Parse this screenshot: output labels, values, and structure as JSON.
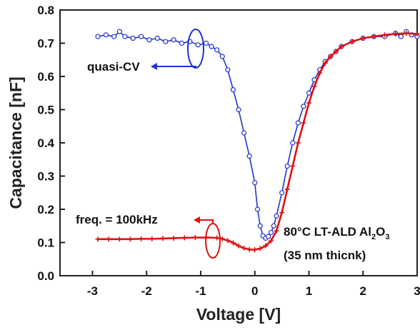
{
  "chart_data": {
    "type": "line",
    "title": "",
    "xlabel": "Voltage [V]",
    "ylabel": "Capacitance [nF]",
    "xlim": [
      -3.6,
      3.0
    ],
    "ylim": [
      0.0,
      0.8
    ],
    "xticks": [
      -3,
      -2,
      -1,
      0,
      1,
      2,
      3
    ],
    "xtick_labels": [
      "-3",
      "-2",
      "-1",
      "0",
      "1",
      "2",
      "3"
    ],
    "yticks": [
      0.0,
      0.1,
      0.2,
      0.3,
      0.4,
      0.5,
      0.6,
      0.7,
      0.8
    ],
    "ytick_labels": [
      "0.0",
      "0.1",
      "0.2",
      "0.3",
      "0.4",
      "0.5",
      "0.6",
      "0.7",
      "0.8"
    ],
    "grid": false,
    "series": [
      {
        "name": "quasi-CV",
        "color": "#2233cc",
        "marker": "open-circle",
        "x": [
          -2.9,
          -2.75,
          -2.6,
          -2.5,
          -2.4,
          -2.25,
          -2.1,
          -1.95,
          -1.8,
          -1.65,
          -1.5,
          -1.35,
          -1.2,
          -1.05,
          -0.9,
          -0.8,
          -0.7,
          -0.6,
          -0.5,
          -0.4,
          -0.3,
          -0.2,
          -0.1,
          0.0,
          0.05,
          0.1,
          0.15,
          0.2,
          0.25,
          0.3,
          0.35,
          0.4,
          0.5,
          0.6,
          0.7,
          0.8,
          0.9,
          1.0,
          1.1,
          1.2,
          1.3,
          1.4,
          1.5,
          1.6,
          1.8,
          2.0,
          2.2,
          2.4,
          2.6,
          2.7,
          2.8,
          2.9,
          3.0
        ],
        "y": [
          0.72,
          0.725,
          0.72,
          0.735,
          0.72,
          0.715,
          0.72,
          0.71,
          0.715,
          0.705,
          0.71,
          0.7,
          0.705,
          0.695,
          0.7,
          0.69,
          0.68,
          0.66,
          0.62,
          0.56,
          0.5,
          0.43,
          0.36,
          0.28,
          0.2,
          0.15,
          0.12,
          0.113,
          0.118,
          0.13,
          0.15,
          0.18,
          0.25,
          0.33,
          0.4,
          0.46,
          0.51,
          0.55,
          0.59,
          0.62,
          0.645,
          0.66,
          0.675,
          0.69,
          0.705,
          0.715,
          0.72,
          0.72,
          0.73,
          0.72,
          0.735,
          0.725,
          0.72
        ]
      },
      {
        "name": "freq. = 100kHz",
        "color": "#e01010",
        "marker": "plus",
        "x": [
          -2.9,
          -2.7,
          -2.5,
          -2.3,
          -2.1,
          -1.9,
          -1.7,
          -1.5,
          -1.3,
          -1.1,
          -0.9,
          -0.7,
          -0.6,
          -0.5,
          -0.4,
          -0.3,
          -0.2,
          -0.1,
          0.0,
          0.1,
          0.2,
          0.3,
          0.4,
          0.5,
          0.6,
          0.7,
          0.8,
          0.9,
          1.0,
          1.1,
          1.2,
          1.3,
          1.4,
          1.5,
          1.6,
          1.8,
          2.0,
          2.2,
          2.4,
          2.6,
          2.8,
          3.0
        ],
        "y": [
          0.11,
          0.11,
          0.11,
          0.11,
          0.111,
          0.111,
          0.112,
          0.113,
          0.114,
          0.115,
          0.115,
          0.114,
          0.111,
          0.106,
          0.099,
          0.09,
          0.083,
          0.079,
          0.078,
          0.082,
          0.09,
          0.105,
          0.135,
          0.19,
          0.26,
          0.33,
          0.4,
          0.46,
          0.52,
          0.57,
          0.61,
          0.64,
          0.66,
          0.675,
          0.69,
          0.705,
          0.715,
          0.72,
          0.725,
          0.728,
          0.73,
          0.728
        ]
      }
    ],
    "annotations": [
      {
        "text": "quasi-CV"
      },
      {
        "text": "freq. = 100kHz"
      },
      {
        "text_main": "80°C LT-ALD Al",
        "sub1": "2",
        "mid": "O",
        "sub2": "3"
      },
      {
        "text": "(35 nm thicnk)"
      }
    ]
  }
}
